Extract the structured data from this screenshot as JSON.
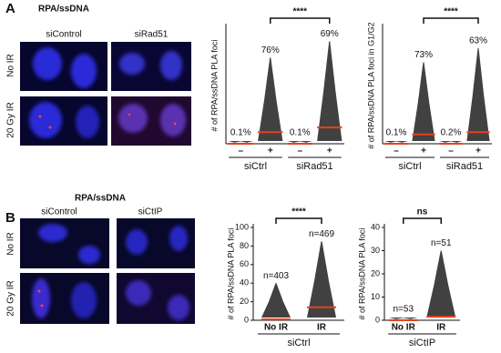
{
  "panels": [
    {
      "label": "A",
      "header": "RPA/ssDNA",
      "columns": [
        "siControl",
        "siRad51"
      ],
      "rows": [
        "No IR",
        "20 Gy IR"
      ],
      "plots": [
        {
          "type": "dot",
          "y_label": "# of RPA/ssDNA PLA foci",
          "ylim": [
            0,
            50
          ],
          "categories": [
            "–",
            "+",
            "–",
            "+"
          ],
          "groups": [
            "siCtrl",
            "siRad51"
          ],
          "annotations": [
            "0.1%",
            "76%",
            "0.1%",
            "69%"
          ],
          "significance": "****",
          "bracket": [
            1,
            3
          ],
          "medians": [
            0,
            5,
            0,
            7
          ],
          "maxima": [
            1,
            37,
            1,
            44
          ],
          "median_color": "#e8401c",
          "dot_color": "#111111"
        },
        {
          "type": "dot",
          "y_label": "# of RPA/ssDNA PLA foci in G1/G2",
          "ylim": [
            0,
            50
          ],
          "categories": [
            "–",
            "+",
            "–",
            "+"
          ],
          "groups": [
            "siCtrl",
            "siRad51"
          ],
          "annotations": [
            "0.1%",
            "73%",
            "0.2%",
            "63%"
          ],
          "significance": "****",
          "bracket": [
            1,
            3
          ],
          "medians": [
            0,
            4,
            0,
            5
          ],
          "maxima": [
            1,
            35,
            1,
            41
          ],
          "median_color": "#e8401c",
          "dot_color": "#111111"
        }
      ]
    },
    {
      "label": "B",
      "header": "RPA/ssDNA",
      "columns": [
        "siControl",
        "siCtIP"
      ],
      "rows": [
        "No IR",
        "20 Gy IR"
      ],
      "plots": [
        {
          "type": "dot",
          "y_label": "# of RPA/ssDNA PLA foci",
          "ylim": [
            0,
            100
          ],
          "yticks": [
            0,
            20,
            40,
            60,
            80,
            100
          ],
          "categories": [
            "No IR",
            "IR"
          ],
          "groups": [
            "siCtrl"
          ],
          "annotations": [
            "n=403",
            "n=469"
          ],
          "significance": "****",
          "bracket": [
            0,
            1
          ],
          "medians": [
            1,
            14
          ],
          "maxima": [
            40,
            85
          ],
          "median_color": "#e8401c",
          "dot_color": "#111111"
        },
        {
          "type": "dot",
          "y_label": "# of RPA/ssDNA PLA foci",
          "ylim": [
            0,
            40
          ],
          "yticks": [
            0,
            10,
            20,
            30,
            40
          ],
          "categories": [
            "No IR",
            "IR"
          ],
          "groups": [
            "siCtIP"
          ],
          "annotations": [
            "n=53",
            "n=51"
          ],
          "significance": "ns",
          "bracket": [
            0,
            1
          ],
          "medians": [
            0,
            1.5
          ],
          "maxima": [
            1,
            30
          ],
          "median_color": "#e8401c",
          "dot_color": "#111111"
        }
      ]
    }
  ]
}
